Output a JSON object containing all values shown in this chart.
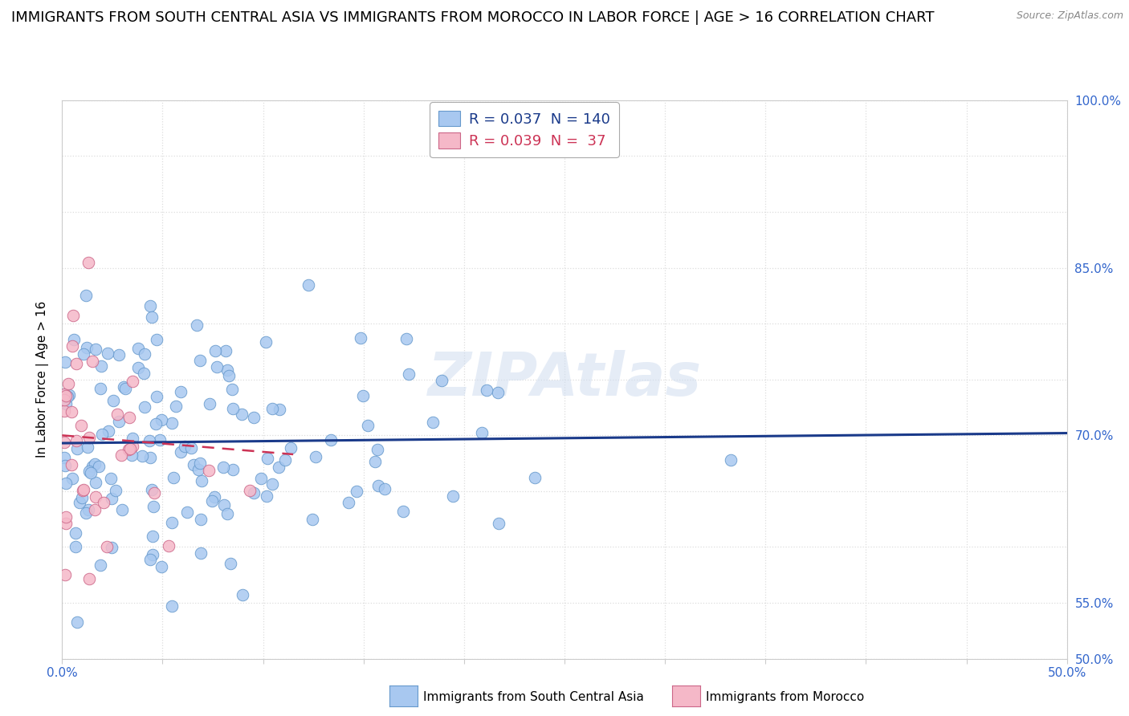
{
  "title": "IMMIGRANTS FROM SOUTH CENTRAL ASIA VS IMMIGRANTS FROM MOROCCO IN LABOR FORCE | AGE > 16 CORRELATION CHART",
  "source": "Source: ZipAtlas.com",
  "ylabel": "In Labor Force | Age > 16",
  "xlim": [
    0.0,
    0.5
  ],
  "ylim": [
    0.5,
    1.0
  ],
  "xticks": [
    0.0,
    0.05,
    0.1,
    0.15,
    0.2,
    0.25,
    0.3,
    0.35,
    0.4,
    0.45,
    0.5
  ],
  "yticks": [
    0.5,
    0.55,
    0.6,
    0.65,
    0.7,
    0.75,
    0.8,
    0.85,
    0.9,
    0.95,
    1.0
  ],
  "blue_color": "#a8c8f0",
  "blue_edge": "#6699cc",
  "pink_color": "#f5b8c8",
  "pink_edge": "#cc6688",
  "blue_line_color": "#1a3a8a",
  "pink_line_color": "#cc3355",
  "legend_R1": "0.037",
  "legend_N1": "140",
  "legend_R2": "0.039",
  "legend_N2": " 37",
  "watermark": "ZIPAtlas",
  "blue_N": 140,
  "pink_N": 37,
  "blue_trend_x0": 0.0,
  "blue_trend_y0": 0.693,
  "blue_trend_x1": 0.5,
  "blue_trend_y1": 0.702,
  "pink_trend_x0": 0.0,
  "pink_trend_y0": 0.7,
  "pink_trend_x1": 0.115,
  "pink_trend_y1": 0.683,
  "grid_color": "#dddddd",
  "background_color": "#ffffff",
  "title_fontsize": 13,
  "axis_label_fontsize": 11,
  "tick_fontsize": 11,
  "legend_fontsize": 13,
  "tick_color": "#3366cc"
}
